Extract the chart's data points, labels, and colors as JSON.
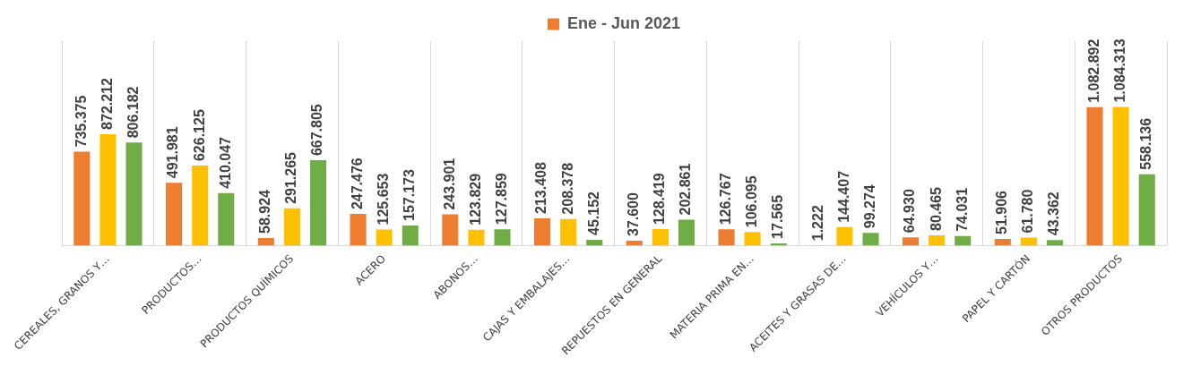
{
  "chart_data": {
    "type": "bar",
    "categories": [
      "CEREALES, GRANOS Y…",
      "PRODUCTOS…",
      "PRODUCTOS QUÍMICOS",
      "ACERO",
      "ABONOS…",
      "CAJAS Y EMBALAJES…",
      "REPUESTOS EN GENERAL",
      "MATERIA PRIMA EN…",
      "ACEITES Y GRASAS DE…",
      "VEHÍCULOS Y…",
      "PAPEL Y CARTÓN",
      "OTROS PRODUCTOS"
    ],
    "series": [
      {
        "name": "Ene - Jun 2021",
        "color": "#ed7d31",
        "values": [
          735375,
          491981,
          58924,
          247476,
          243901,
          213408,
          37600,
          126767,
          1222,
          64930,
          51906,
          1082892
        ],
        "value_labels": [
          "735.375",
          "491.981",
          "58.924",
          "247.476",
          "243.901",
          "213.408",
          "37.600",
          "126.767",
          "1.222",
          "64.930",
          "51.906",
          "1.082.892"
        ]
      },
      {
        "color": "#ffc000",
        "values": [
          872212,
          626125,
          291265,
          125653,
          123829,
          208378,
          128419,
          106095,
          144407,
          80465,
          61780,
          1084313
        ],
        "value_labels": [
          "872.212",
          "626.125",
          "291.265",
          "125.653",
          "123.829",
          "208.378",
          "128.419",
          "106.095",
          "144.407",
          "80.465",
          "61.780",
          "1.084.313"
        ]
      },
      {
        "color": "#70ad47",
        "values": [
          806182,
          410047,
          667805,
          157173,
          127859,
          45152,
          202861,
          17565,
          99274,
          74031,
          43362,
          558136
        ],
        "value_labels": [
          "806.182",
          "410.047",
          "667.805",
          "157.173",
          "127.859",
          "45.152",
          "202.861",
          "17.565",
          "99.274",
          "74.031",
          "43.362",
          "558.136"
        ]
      }
    ],
    "grid": "x",
    "legend": "top"
  }
}
